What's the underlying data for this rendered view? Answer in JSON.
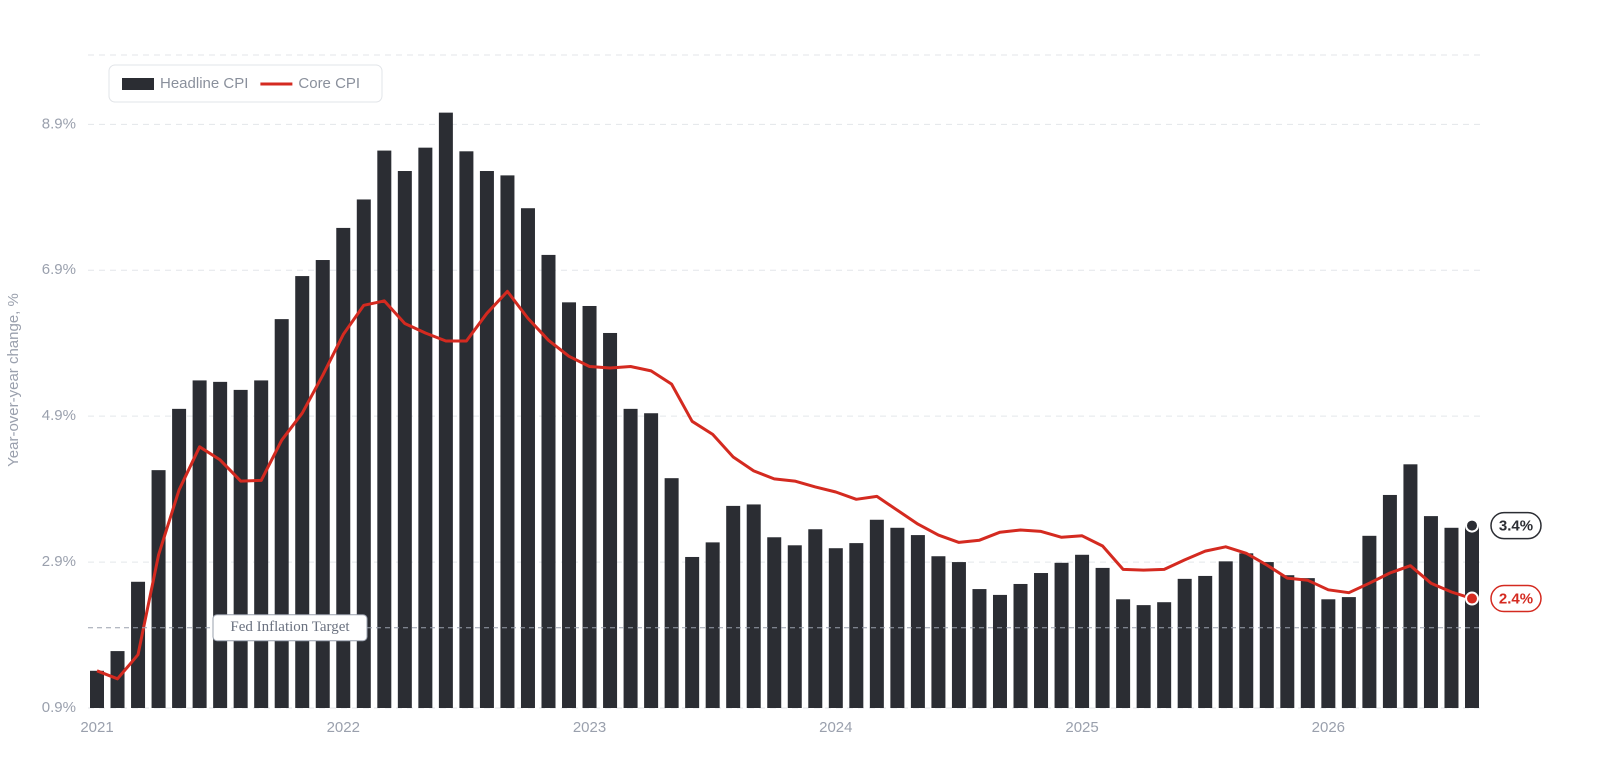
{
  "chart_data": {
    "type": "bar-line",
    "y_label": "Year-over-year change, %",
    "categories": [
      "2021",
      null,
      null,
      null,
      null,
      null,
      null,
      null,
      null,
      null,
      null,
      null,
      "2022",
      null,
      null,
      null,
      null,
      null,
      null,
      null,
      null,
      null,
      null,
      null,
      "2023",
      null,
      null,
      null,
      null,
      null,
      null,
      null,
      null,
      null,
      null,
      null,
      "2024",
      null,
      null,
      null,
      null,
      null,
      null,
      null,
      null,
      null,
      null,
      null,
      "2025",
      null,
      null,
      null,
      null,
      null,
      null,
      null,
      null,
      null,
      null,
      null,
      "2026",
      null,
      null,
      null,
      null,
      null,
      null,
      null
    ],
    "series": [
      {
        "name": "Headline CPI",
        "type": "bar",
        "color": "#2b2d33",
        "values": [
          1.41,
          1.68,
          2.63,
          4.16,
          5.0,
          5.39,
          5.37,
          5.26,
          5.39,
          6.23,
          6.82,
          7.04,
          7.48,
          7.87,
          8.54,
          8.26,
          8.58,
          9.06,
          8.53,
          8.26,
          8.2,
          7.75,
          7.11,
          6.46,
          6.41,
          6.04,
          5.0,
          4.94,
          4.05,
          2.97,
          3.17,
          3.67,
          3.69,
          3.24,
          3.13,
          3.35,
          3.09,
          3.16,
          3.48,
          3.37,
          3.27,
          2.98,
          2.9,
          2.53,
          2.45,
          2.6,
          2.75,
          2.89,
          3.0,
          2.82,
          2.39,
          2.31,
          2.35,
          2.67,
          2.71,
          2.91,
          3.02,
          2.9,
          2.72,
          2.68,
          2.39,
          2.42,
          3.26,
          3.82,
          4.24,
          3.53,
          3.37,
          3.4
        ],
        "value_labels": [
          null,
          null,
          null,
          null,
          null,
          null,
          null,
          null,
          null,
          null,
          null,
          null,
          null,
          null,
          null,
          null,
          null,
          null,
          null,
          null,
          null,
          null,
          null,
          null,
          null,
          null,
          null,
          null,
          null,
          null,
          null,
          null,
          null,
          null,
          null,
          null,
          null,
          null,
          null,
          null,
          null,
          null,
          null,
          null,
          null,
          null,
          null,
          null,
          null,
          null,
          null,
          null,
          null,
          null,
          null,
          null,
          null,
          null,
          null,
          null,
          null,
          null,
          null,
          null,
          null,
          null,
          null,
          "3.4%"
        ]
      },
      {
        "name": "Core CPI",
        "type": "line",
        "color": "#d42a20",
        "values": [
          1.41,
          1.3,
          1.63,
          3.0,
          3.89,
          4.48,
          4.3,
          4.01,
          4.02,
          4.57,
          4.94,
          5.46,
          6.02,
          6.42,
          6.48,
          6.17,
          6.04,
          5.93,
          5.93,
          6.31,
          6.61,
          6.24,
          5.94,
          5.72,
          5.58,
          5.56,
          5.58,
          5.52,
          5.34,
          4.83,
          4.65,
          4.34,
          4.15,
          4.04,
          4.01,
          3.93,
          3.86,
          3.76,
          3.8,
          3.61,
          3.42,
          3.27,
          3.17,
          3.2,
          3.31,
          3.34,
          3.32,
          3.24,
          3.26,
          3.12,
          2.8,
          2.79,
          2.8,
          2.93,
          3.05,
          3.11,
          3.02,
          2.86,
          2.68,
          2.65,
          2.52,
          2.48,
          2.61,
          2.75,
          2.85,
          2.61,
          2.49,
          2.4
        ],
        "value_labels": [
          null,
          null,
          null,
          null,
          null,
          null,
          null,
          null,
          null,
          null,
          null,
          null,
          null,
          null,
          null,
          null,
          null,
          null,
          null,
          null,
          null,
          null,
          null,
          null,
          null,
          null,
          null,
          null,
          null,
          null,
          null,
          null,
          null,
          null,
          null,
          null,
          null,
          null,
          null,
          null,
          null,
          null,
          null,
          null,
          null,
          null,
          null,
          null,
          null,
          null,
          null,
          null,
          null,
          null,
          null,
          null,
          null,
          null,
          null,
          null,
          null,
          null,
          null,
          null,
          null,
          null,
          null,
          "2.4%"
        ]
      }
    ],
    "reference_lines": [
      {
        "value": 2.0,
        "label": "Fed Inflation Target"
      }
    ],
    "ylim": [
      0.9,
      9.85
    ],
    "yticks": [
      {
        "value": 0.9,
        "label": "0.9%"
      },
      {
        "value": 2.9,
        "label": "2.9%"
      },
      {
        "value": 4.9,
        "label": "4.9%"
      },
      {
        "value": 6.9,
        "label": "6.9%"
      },
      {
        "value": 8.9,
        "label": "8.9%"
      }
    ],
    "grid": true,
    "legend": "top-left"
  }
}
